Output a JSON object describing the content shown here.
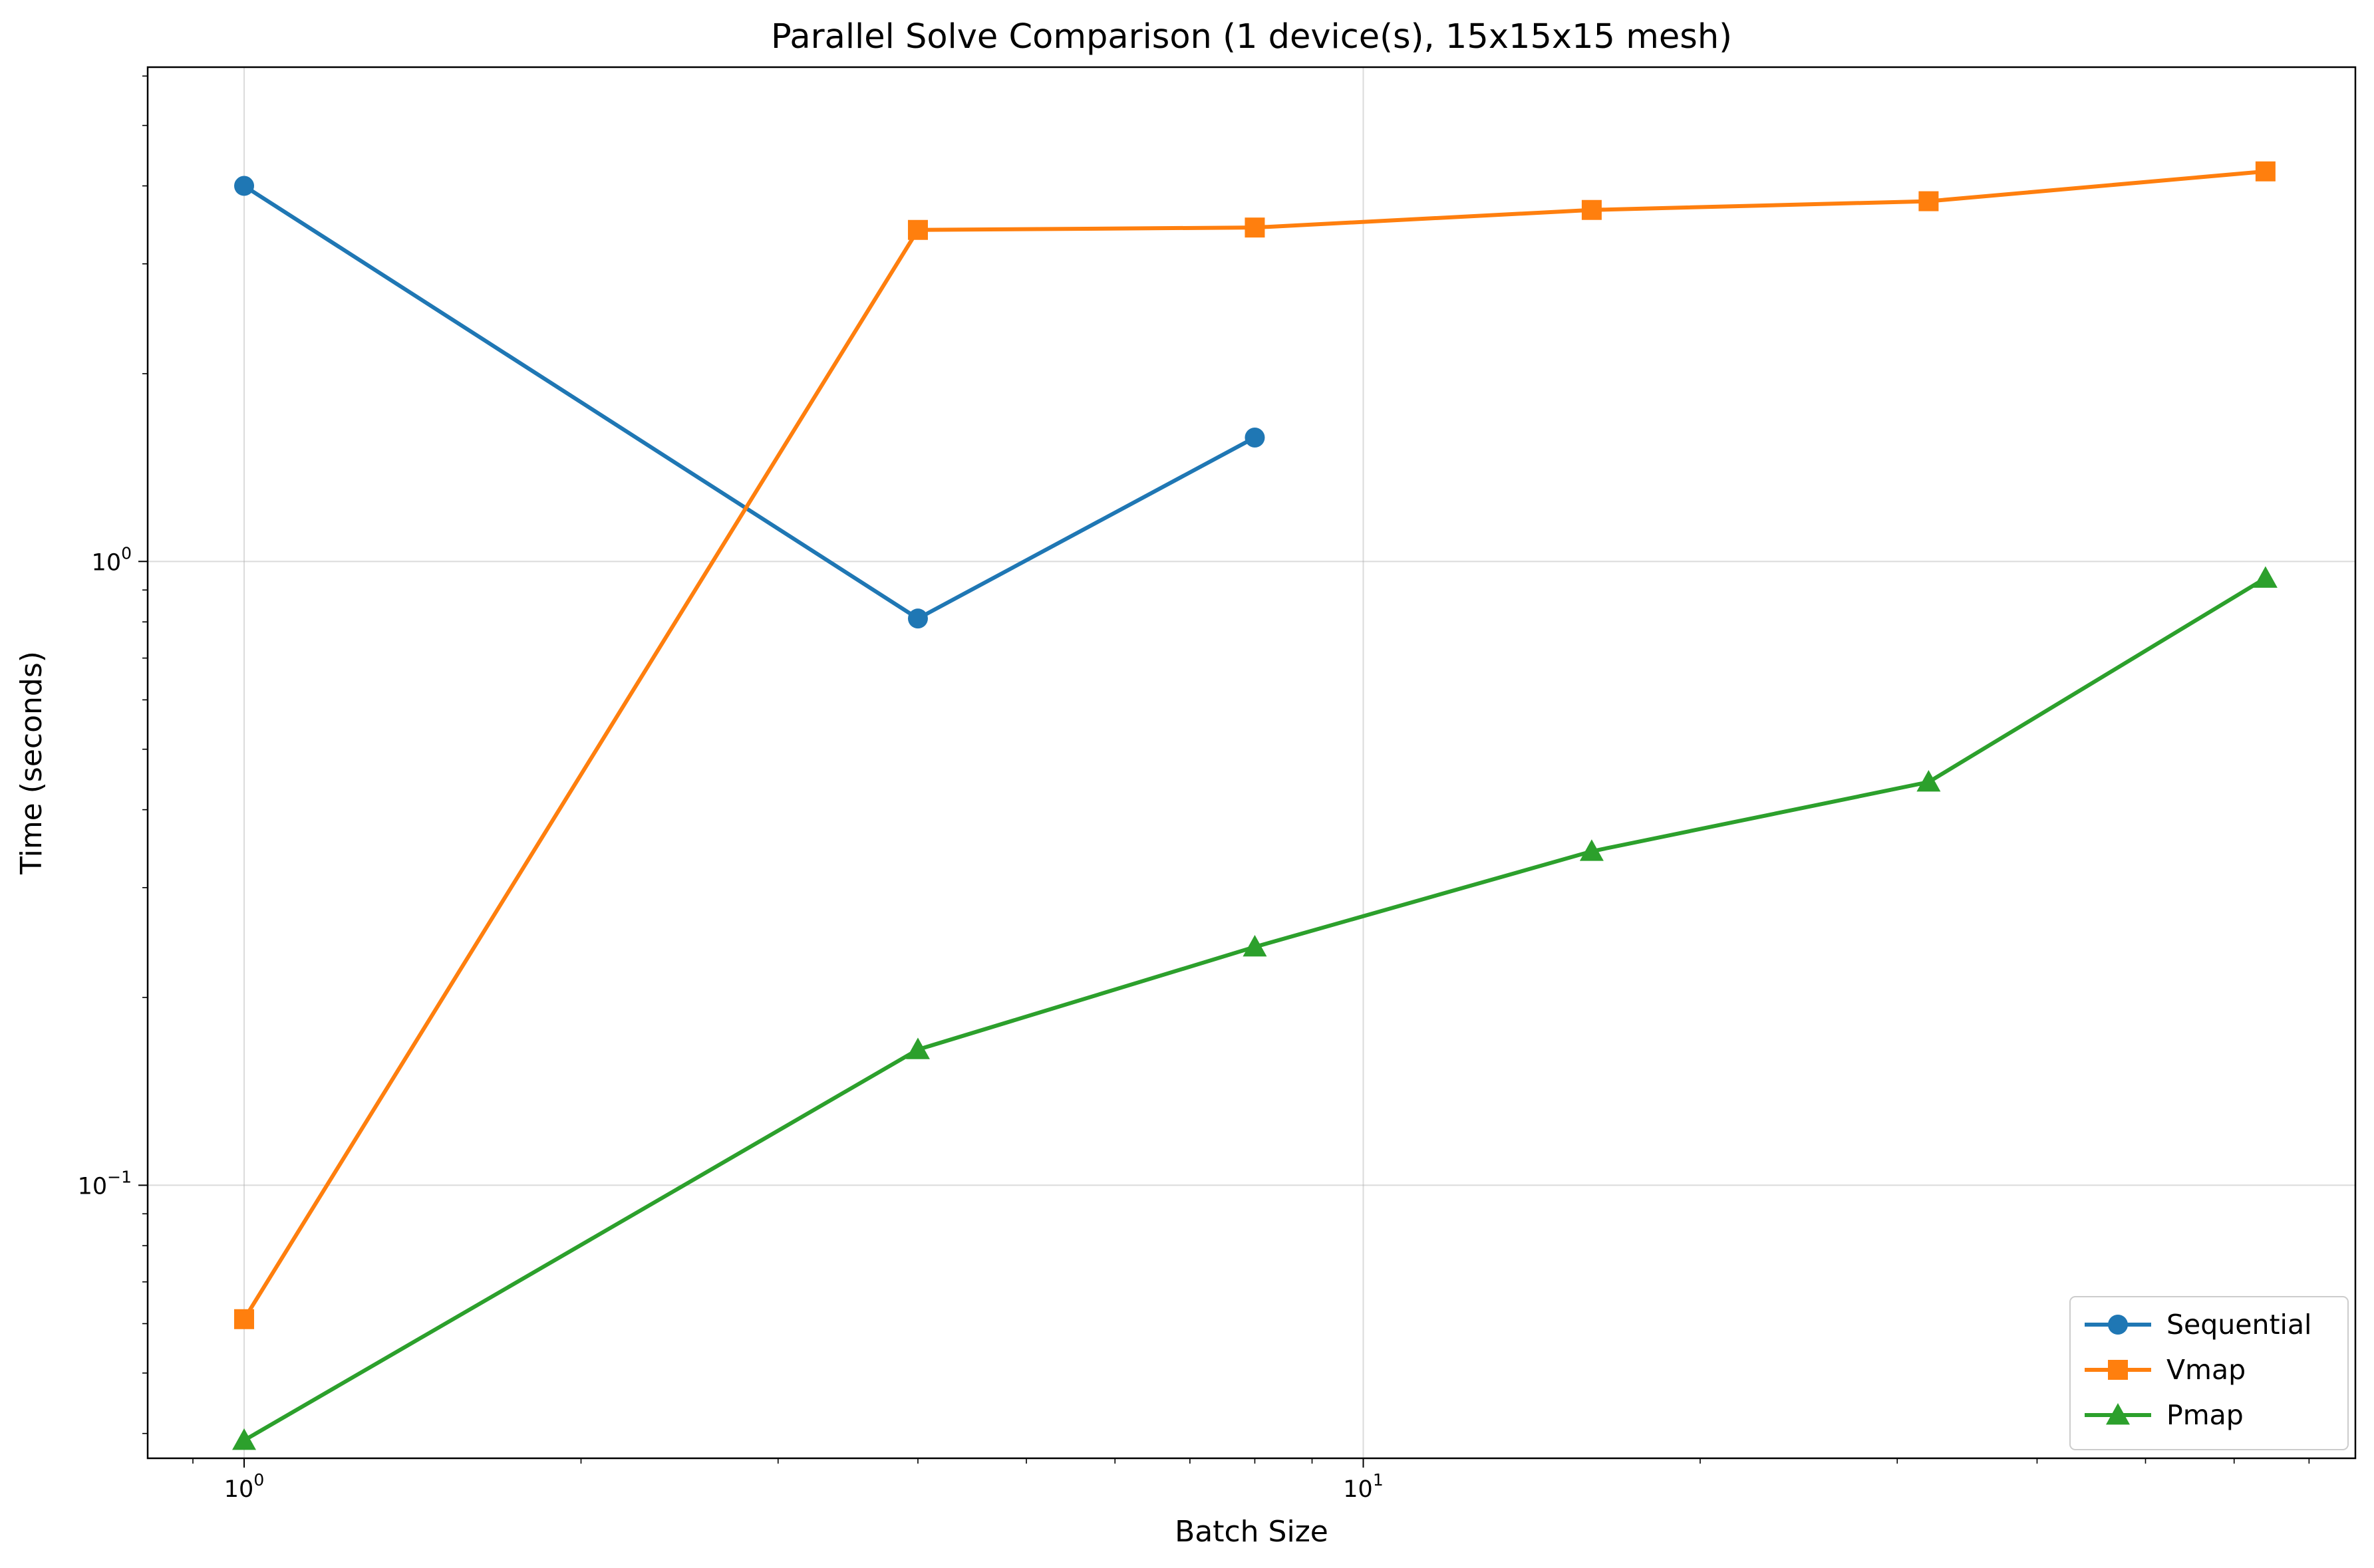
{
  "chart_data": {
    "type": "line",
    "title": "Parallel Solve Comparison (1 device(s), 15x15x15 mesh)",
    "xlabel": "Batch Size",
    "ylabel": "Time (seconds)",
    "xscale": "log",
    "yscale": "log",
    "xlim": [
      0.82,
      77
    ],
    "ylim": [
      0.0365,
      6.2
    ],
    "x_ticks": [
      {
        "base": "10",
        "exp": "0",
        "value": 1
      },
      {
        "base": "10",
        "exp": "1",
        "value": 10
      }
    ],
    "y_ticks": [
      {
        "base": "10",
        "exp": "−1",
        "value": 0.1
      },
      {
        "base": "10",
        "exp": "0",
        "value": 1
      }
    ],
    "grid": true,
    "legend_position": "lower-right",
    "series": [
      {
        "name": "Sequential",
        "color": "#1f77b4",
        "marker": "circle",
        "x": [
          1,
          4,
          8
        ],
        "y": [
          4.0,
          0.81,
          1.58
        ]
      },
      {
        "name": "Vmap",
        "color": "#ff7f0e",
        "marker": "square",
        "x": [
          1,
          4,
          8,
          16,
          32,
          64
        ],
        "y": [
          0.061,
          3.4,
          3.43,
          3.66,
          3.78,
          4.22
        ]
      },
      {
        "name": "Pmap",
        "color": "#2ca02c",
        "marker": "triangle",
        "x": [
          1,
          4,
          8,
          16,
          32,
          64
        ],
        "y": [
          0.039,
          0.165,
          0.241,
          0.343,
          0.443,
          0.94
        ]
      }
    ]
  }
}
